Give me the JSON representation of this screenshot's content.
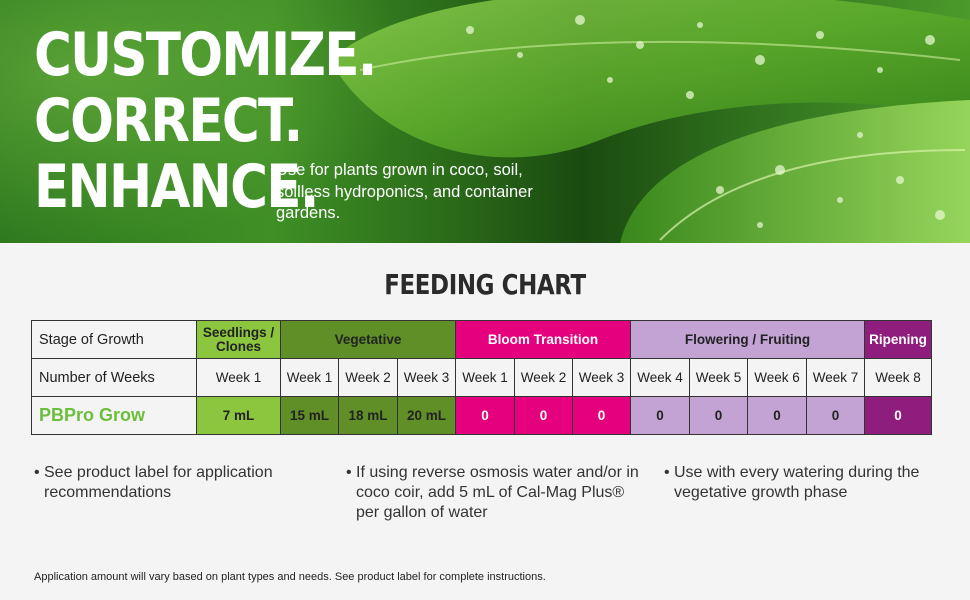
{
  "hero": {
    "headline": [
      "CUSTOMIZE.",
      "CORRECT.",
      "ENHANCE."
    ],
    "subtext": "Use for plants grown in coco, soil, soilless hydroponics, and container gardens."
  },
  "chart_title": "FEEDING CHART",
  "table": {
    "row_labels": {
      "stage": "Stage of Growth",
      "weeks": "Number of Weeks",
      "product": "PBPro Grow"
    },
    "stages": [
      {
        "label": "Seedlings / Clones",
        "color": "#8cc63f",
        "text_color": "#222222"
      },
      {
        "label": "Vegetative",
        "color": "#5f8f26",
        "text_color": "#222222"
      },
      {
        "label": "Bloom Transition",
        "color": "#e5007e",
        "text_color": "#ffffff"
      },
      {
        "label": "Flowering / Fruiting",
        "color": "#c3a2d4",
        "text_color": "#222222"
      },
      {
        "label": "Ripening",
        "color": "#8e1d7e",
        "text_color": "#ffffff"
      }
    ],
    "weeks": [
      "Week 1",
      "Week 1",
      "Week 2",
      "Week 3",
      "Week 1",
      "Week 2",
      "Week 3",
      "Week 4",
      "Week 5",
      "Week 6",
      "Week 7",
      "Week 8"
    ],
    "amounts": [
      "7 mL",
      "15 mL",
      "18 mL",
      "20 mL",
      "0",
      "0",
      "0",
      "0",
      "0",
      "0",
      "0",
      "0"
    ]
  },
  "bullets": [
    "See product label for application recommendations",
    "If using reverse osmosis water and/or in coco coir, add 5 mL of Cal-Mag Plus® per gallon of water",
    "Use with every watering during the vegetative growth phase"
  ],
  "footnote": "Application amount will vary based on plant types and needs. See product label for complete instructions."
}
